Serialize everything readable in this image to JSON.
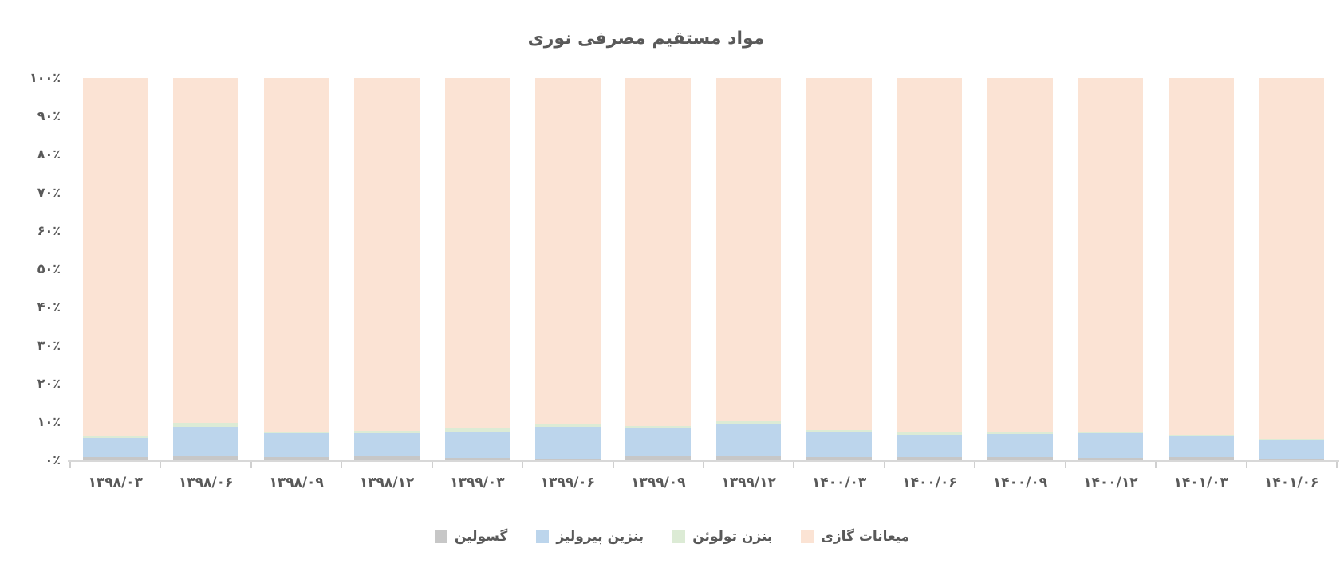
{
  "title": "مواد مستقیم مصرفی نوری",
  "chart_data": {
    "type": "bar",
    "stacked": true,
    "stacking": "percent",
    "title": "مواد مستقیم مصرفی نوری",
    "categories": [
      "۱۳۹۸/۰۳",
      "۱۳۹۸/۰۶",
      "۱۳۹۸/۰۹",
      "۱۳۹۸/۱۲",
      "۱۳۹۹/۰۳",
      "۱۳۹۹/۰۶",
      "۱۳۹۹/۰۹",
      "۱۳۹۹/۱۲",
      "۱۴۰۰/۰۳",
      "۱۴۰۰/۰۶",
      "۱۴۰۰/۰۹",
      "۱۴۰۰/۱۲",
      "۱۴۰۱/۰۳",
      "۱۴۰۱/۰۶"
    ],
    "series": [
      {
        "name": "گسولین",
        "color": "#c7c7c7",
        "values": [
          0.8,
          1.0,
          0.8,
          1.2,
          0.6,
          0.4,
          1.0,
          1.0,
          0.8,
          0.9,
          0.9,
          0.6,
          0.8,
          0.5
        ]
      },
      {
        "name": "بنزین پیرولیز",
        "color": "#bcd5ec",
        "values": [
          5.0,
          7.8,
          6.2,
          5.9,
          6.9,
          8.3,
          7.4,
          8.5,
          6.7,
          5.7,
          6.0,
          6.4,
          5.4,
          4.7
        ]
      },
      {
        "name": "بنزن تولوئن",
        "color": "#dcebd5",
        "values": [
          0.4,
          1.0,
          0.5,
          0.7,
          0.8,
          0.6,
          0.5,
          0.7,
          0.5,
          0.7,
          0.7,
          0.4,
          0.5,
          0.4
        ]
      },
      {
        "name": "میعانات گازی",
        "color": "#fbe3d4",
        "values": [
          93.8,
          90.2,
          92.5,
          92.2,
          91.7,
          90.7,
          91.1,
          89.8,
          92.0,
          92.7,
          92.4,
          92.6,
          93.3,
          94.4
        ]
      }
    ],
    "xlabel": "",
    "ylabel": "",
    "ylim": [
      0,
      100
    ],
    "y_ticks": [
      "۰٪",
      "۱۰٪",
      "۲۰٪",
      "۳۰٪",
      "۴۰٪",
      "۵۰٪",
      "۶۰٪",
      "۷۰٪",
      "۸۰٪",
      "۹۰٪",
      "۱۰۰٪"
    ],
    "grid": false,
    "legend_position": "bottom",
    "legend_order": [
      "گسولین",
      "بنزین پیرولیز",
      "بنزن تولوئن",
      "میعانات گازی"
    ],
    "text_color": "#595959",
    "axis_color": "#d8d8d8"
  }
}
